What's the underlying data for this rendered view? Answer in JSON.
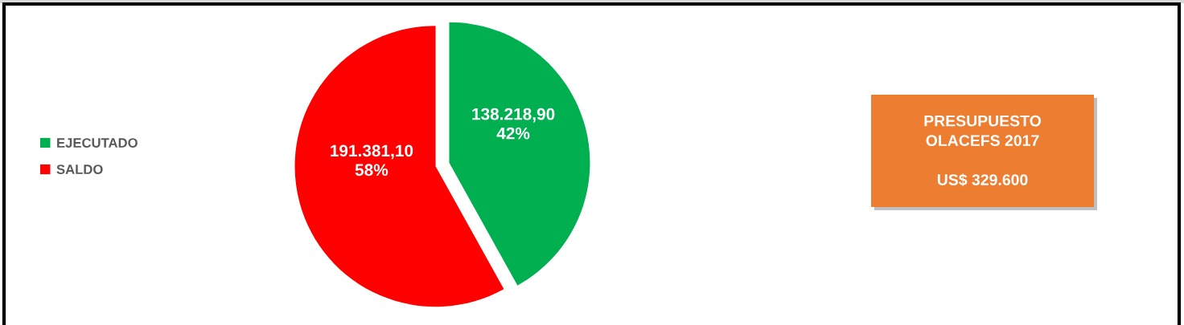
{
  "chart_data": {
    "type": "pie",
    "categories": [
      "EJECUTADO",
      "SALDO"
    ],
    "values": [
      138218.9,
      191381.1
    ],
    "colors": [
      "#00b050",
      "#ff0000"
    ],
    "value_labels": [
      "138.218,90\n42%",
      "191.381,10\n58%"
    ],
    "legend": "left",
    "annotations": [
      "PRESUPUESTO\nOLACEFS 2017\n\nUS$ 329.600"
    ]
  }
}
